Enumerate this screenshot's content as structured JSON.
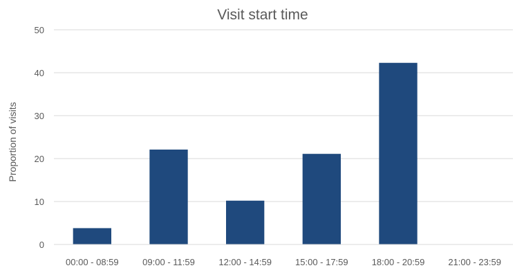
{
  "chart_data": {
    "type": "bar",
    "title": "Visit start time",
    "xlabel": "",
    "ylabel": "Proportion of visits",
    "categories": [
      "00:00 - 08:59",
      "09:00 - 11:59",
      "12:00 - 14:59",
      "15:00 - 17:59",
      "18:00 - 20:59",
      "21:00 - 23:59"
    ],
    "values": [
      3.8,
      22.1,
      10.2,
      21.1,
      42.3,
      0
    ],
    "ylim": [
      0,
      50
    ],
    "yticks": [
      0,
      10,
      20,
      30,
      40,
      50
    ],
    "grid": true,
    "legend": "none",
    "bar_color": "#1f497d"
  }
}
